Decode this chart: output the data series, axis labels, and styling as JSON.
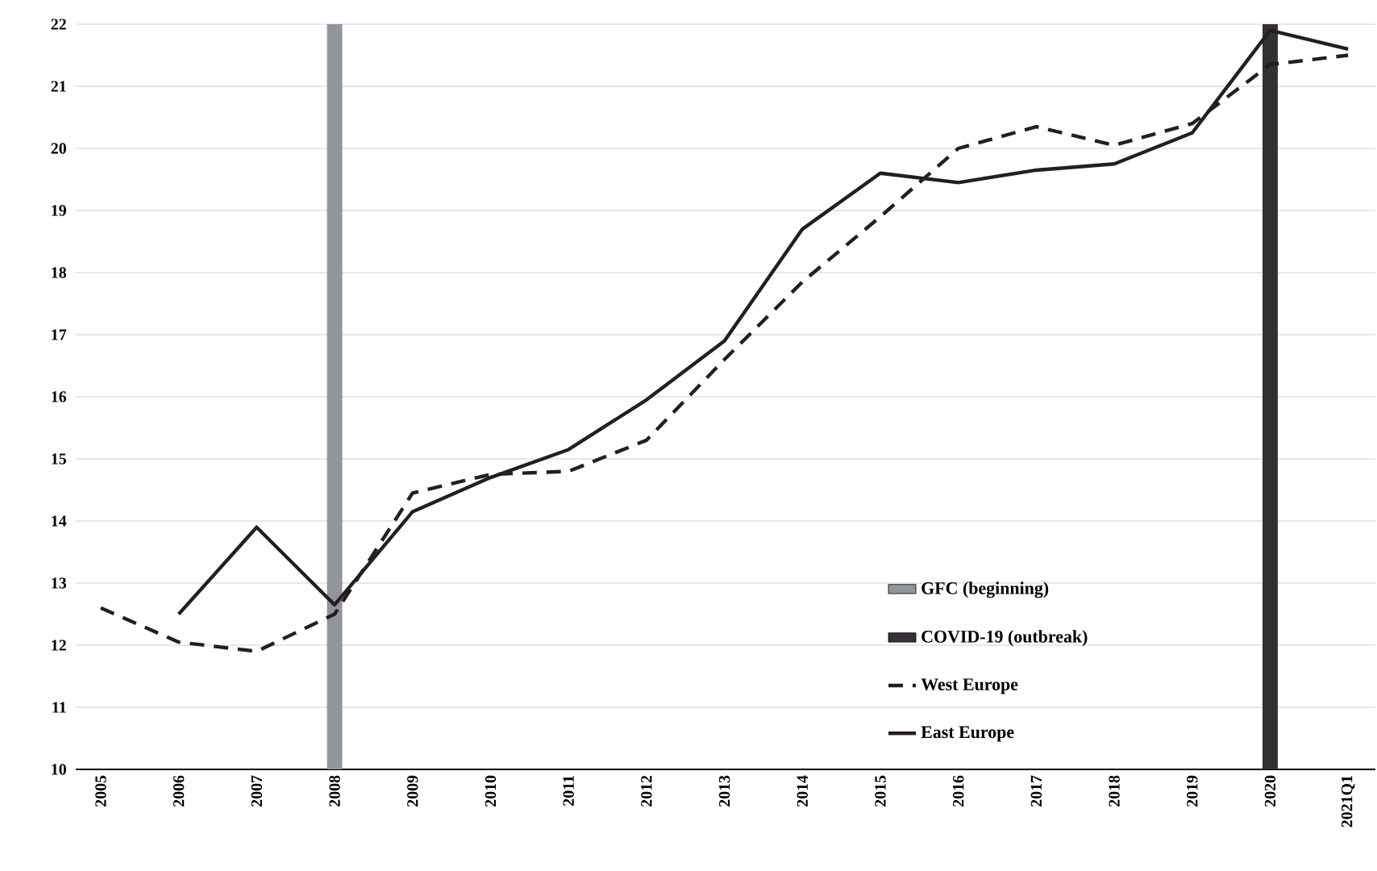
{
  "chart_data": {
    "type": "line",
    "categories": [
      "2005",
      "2006",
      "2007",
      "2008",
      "2009",
      "2010",
      "2011",
      "2012",
      "2013",
      "2014",
      "2015",
      "2016",
      "2017",
      "2018",
      "2019",
      "2020",
      "2021Q1"
    ],
    "series": [
      {
        "name": "GFC (beginning)",
        "type": "bar",
        "color": "#939598",
        "values": [
          null,
          null,
          null,
          22,
          null,
          null,
          null,
          null,
          null,
          null,
          null,
          null,
          null,
          null,
          null,
          null,
          null
        ]
      },
      {
        "name": "COVID-19  (outbreak)",
        "type": "bar",
        "color": "#333133",
        "values": [
          null,
          null,
          null,
          null,
          null,
          null,
          null,
          null,
          null,
          null,
          null,
          null,
          null,
          null,
          null,
          22,
          null
        ]
      },
      {
        "name": "West Europe",
        "line_style": "dashed",
        "color": "#231f20",
        "values": [
          12.6,
          12.05,
          11.9,
          12.5,
          14.45,
          14.75,
          14.8,
          15.3,
          16.6,
          17.85,
          18.9,
          20.0,
          20.35,
          20.05,
          20.4,
          21.35,
          21.5
        ]
      },
      {
        "name": "East Europe",
        "line_style": "solid",
        "color": "#231f20",
        "values": [
          null,
          12.5,
          13.9,
          12.65,
          14.15,
          14.7,
          15.15,
          15.95,
          16.9,
          18.7,
          19.6,
          19.45,
          19.65,
          19.75,
          20.25,
          21.9,
          21.6
        ]
      }
    ],
    "ylim": [
      10,
      22
    ],
    "yticks": [
      10,
      11,
      12,
      13,
      14,
      15,
      16,
      17,
      18,
      19,
      20,
      21,
      22
    ],
    "grid": "y",
    "legend": "right",
    "marker": "none"
  }
}
